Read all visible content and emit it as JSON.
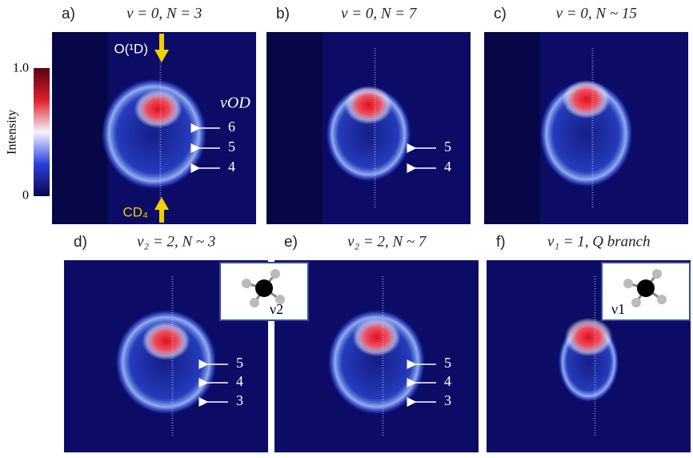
{
  "colorbar": {
    "label": "Intensity",
    "top": "1.0",
    "bottom": "0"
  },
  "panels": [
    {
      "letter": "a)",
      "title": "v = 0, N = 3",
      "arrows": [
        "6",
        "5",
        "4"
      ]
    },
    {
      "letter": "b)",
      "title": "v = 0, N = 7",
      "arrows": [
        "5",
        "4"
      ]
    },
    {
      "letter": "c)",
      "title": "v = 0, N ~ 15",
      "arrows": []
    },
    {
      "letter": "d)",
      "title": "v₂ = 2, N ~ 3",
      "arrows": [
        "5",
        "4",
        "3"
      ]
    },
    {
      "letter": "e)",
      "title": "v₂ = 2, N ~ 7",
      "arrows": [
        "5",
        "4",
        "3"
      ]
    },
    {
      "letter": "f)",
      "title": "v₁ = 1, Q branch",
      "arrows": []
    }
  ],
  "annotations": {
    "reactant_top": "O(¹D)",
    "reactant_bottom": "CD₄",
    "vod": "vOD"
  },
  "insets": {
    "d": "ν2",
    "f": "ν1"
  }
}
